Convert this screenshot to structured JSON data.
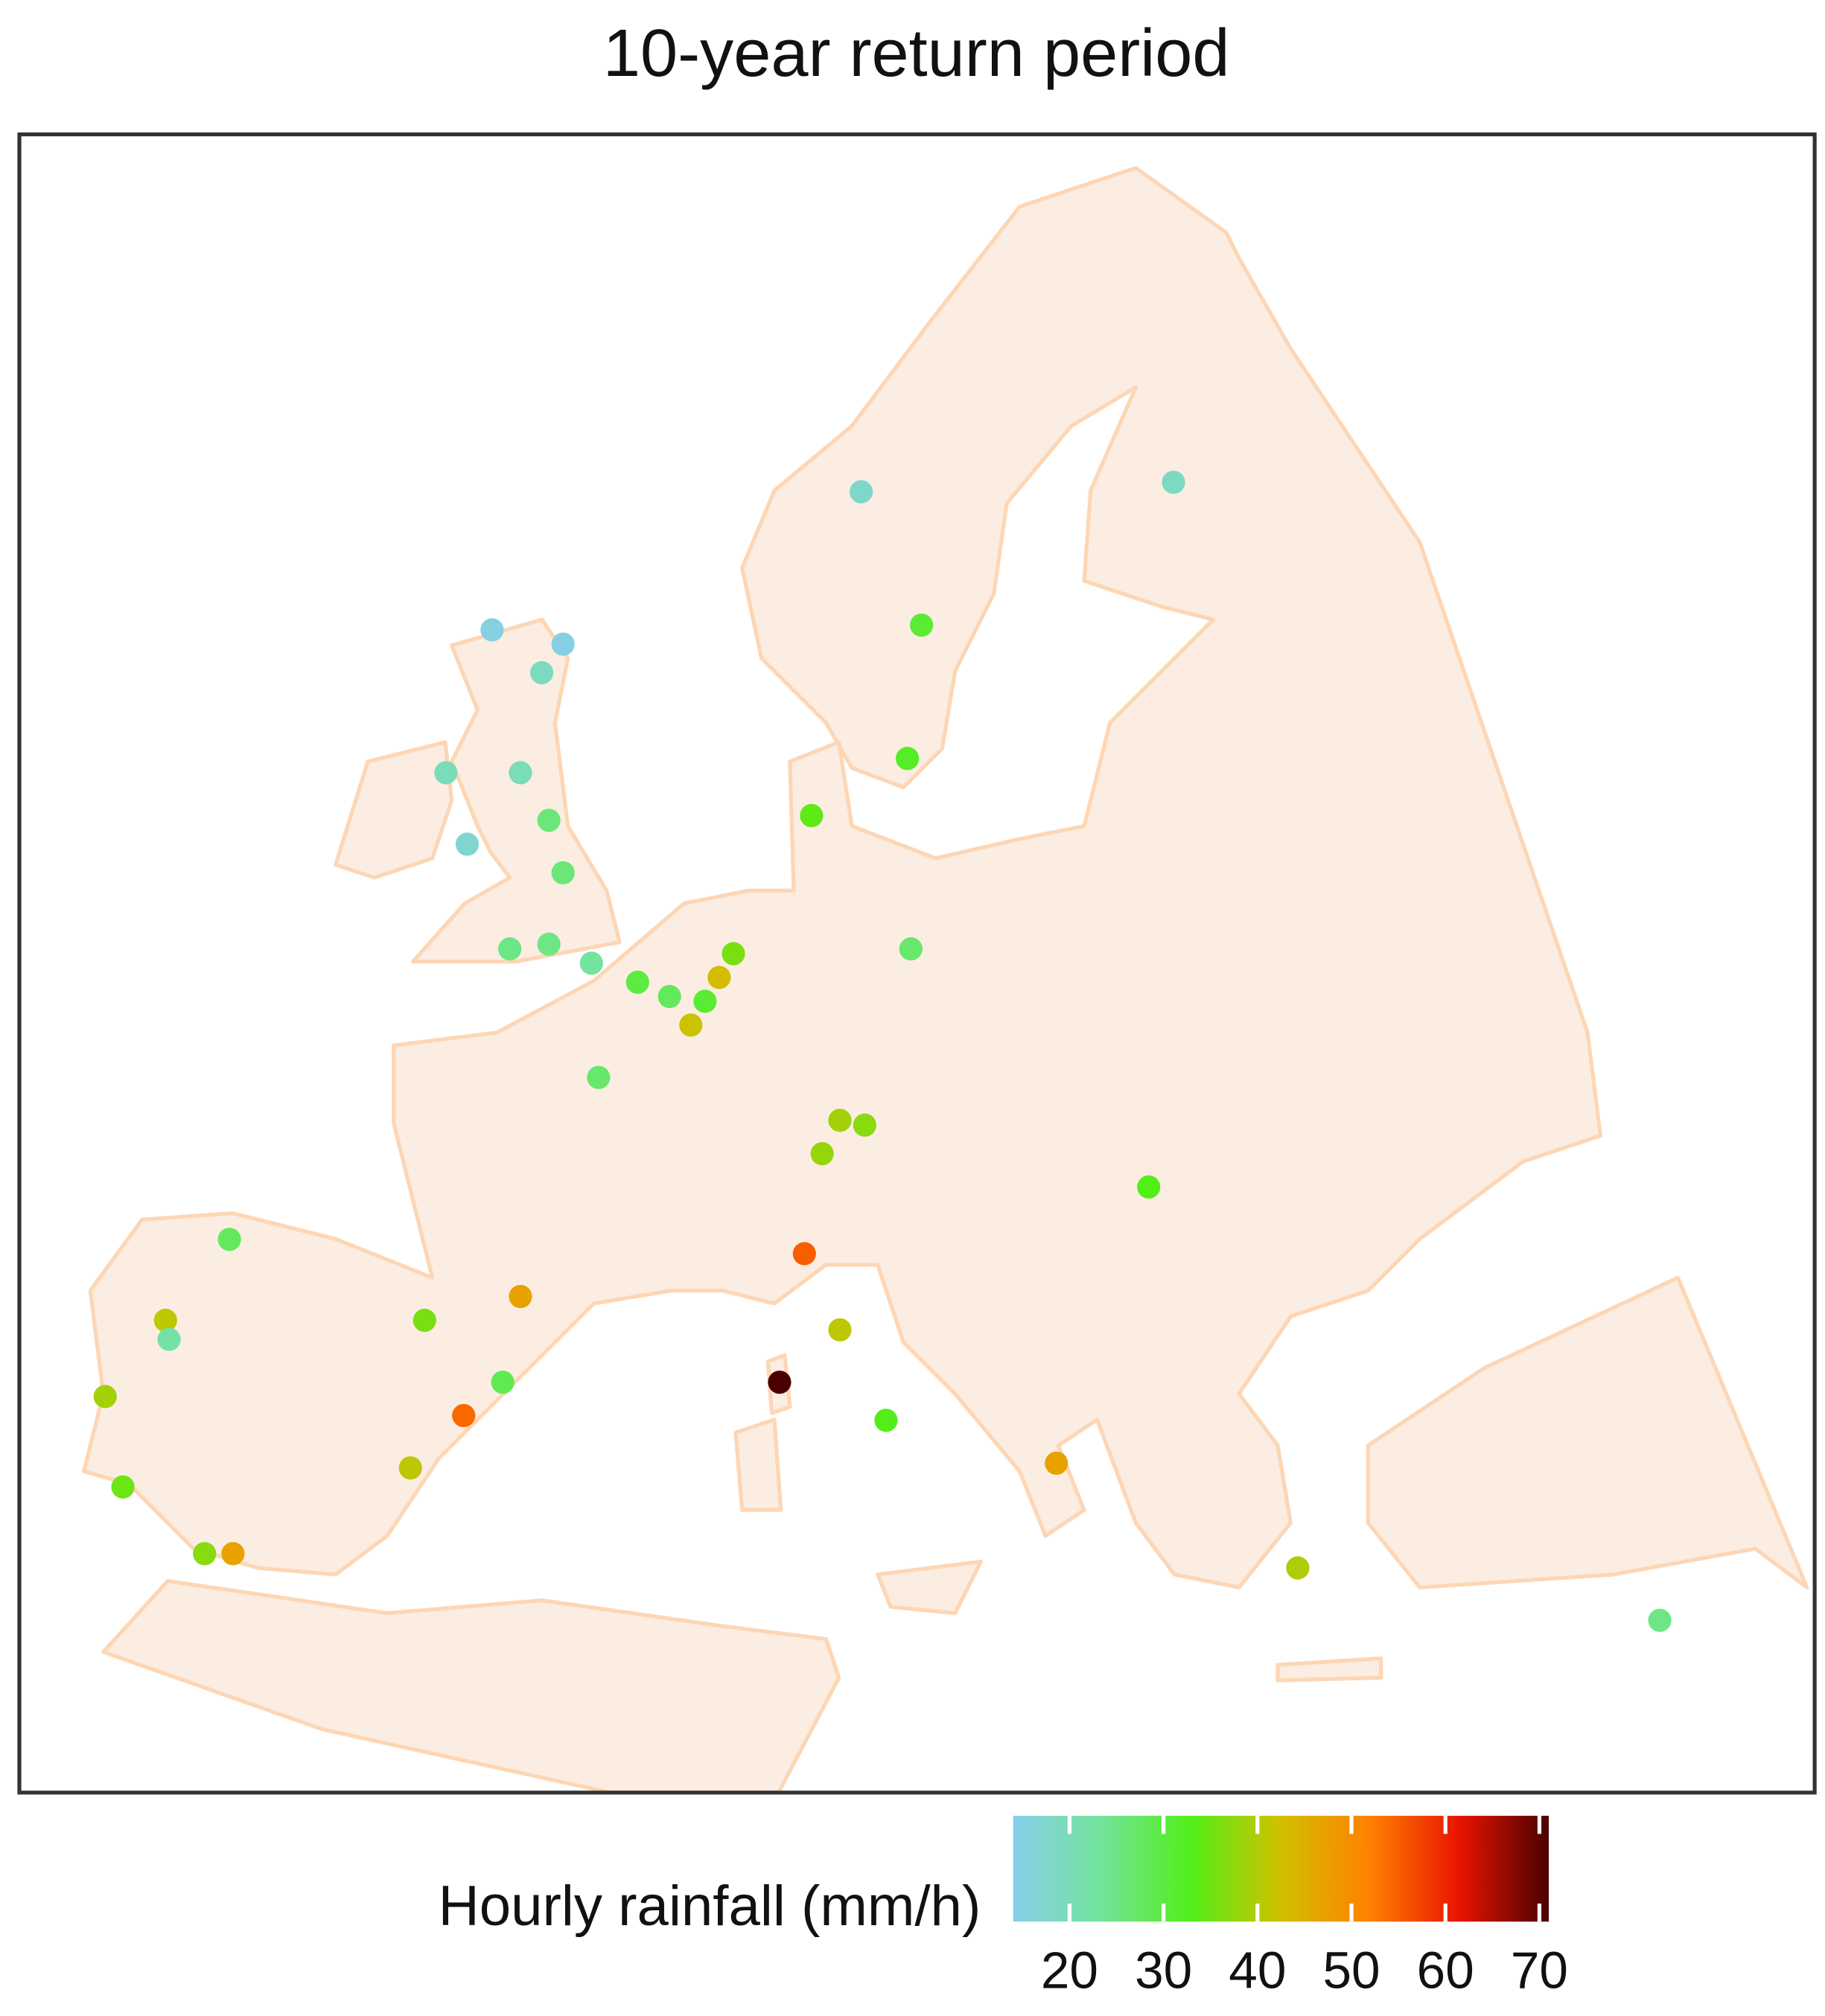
{
  "chart_data": {
    "type": "map",
    "title": "10-year return period",
    "colorbar_label": "Hourly rainfall (mm/h)",
    "lon": [
      11.1,
      19.9,
      12.8,
      12.4,
      9.7,
      0.7,
      2.7,
      2.1,
      -0.6,
      1.5,
      2.3,
      0.0,
      2.7,
      1.2,
      2.3,
      3.5,
      4.8,
      5.7,
      6.7,
      7.5,
      7.1,
      6.3,
      12.5,
      3.7,
      10.5,
      11.2,
      10.0,
      19.2,
      9.5,
      10.5,
      8.8,
      11.8,
      16.6,
      1.5,
      -1.2,
      1.0,
      -0.1,
      -1.6,
      -6.7,
      -8.5,
      -8.4,
      -10.2,
      -9.7,
      -7.4,
      -6.6,
      23.4,
      33.6
    ],
    "lat": [
      60.6,
      60.8,
      57.8,
      55.0,
      53.8,
      57.7,
      57.4,
      56.8,
      54.7,
      54.7,
      53.7,
      53.2,
      52.6,
      51.0,
      51.1,
      50.7,
      50.3,
      50.0,
      49.9,
      50.9,
      50.4,
      49.4,
      51.0,
      48.3,
      47.4,
      47.3,
      46.7,
      46.0,
      44.6,
      43.0,
      41.9,
      41.1,
      40.2,
      43.7,
      43.2,
      41.9,
      41.2,
      40.1,
      44.9,
      43.2,
      42.8,
      41.6,
      39.7,
      38.3,
      38.3,
      38.0,
      36.9
    ],
    "values": [
      18,
      19,
      31,
      32,
      34,
      15,
      15,
      19,
      20,
      20,
      26,
      17,
      26,
      25,
      25,
      23,
      30,
      28,
      31,
      36,
      43,
      42,
      27,
      27,
      39,
      37,
      38,
      33,
      55,
      41,
      71,
      33,
      47,
      47,
      36,
      29,
      54,
      41,
      28,
      41,
      22,
      39,
      35,
      37,
      47,
      40,
      25
    ],
    "clim": [
      14,
      71
    ],
    "cticks": [
      20,
      30,
      40,
      50,
      60,
      70
    ],
    "colors": [
      "#87ceeb",
      "#72e49a",
      "#52ee18",
      "#d2c000",
      "#ff8000",
      "#e81400",
      "#4a0000"
    ]
  }
}
